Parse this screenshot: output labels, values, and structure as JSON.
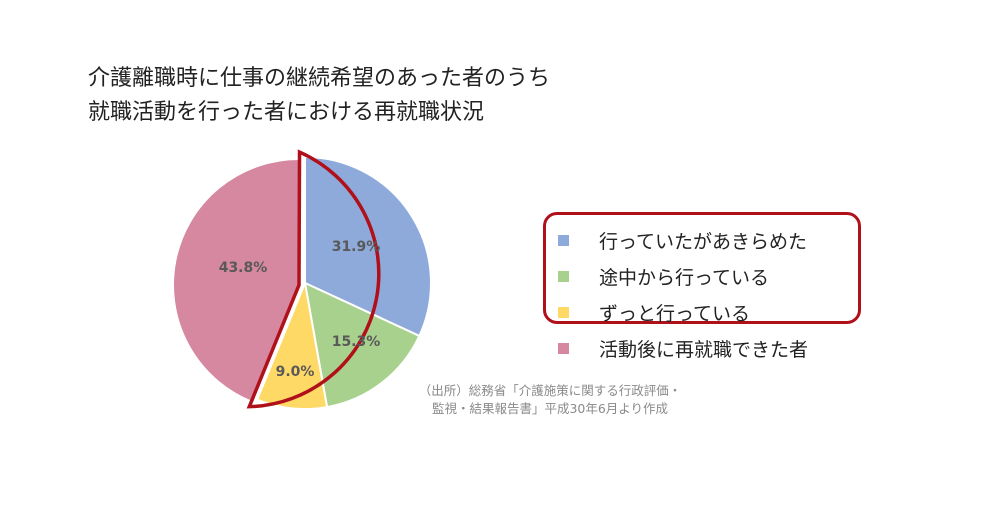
{
  "title": {
    "line1": "介護離職時に仕事の継続希望のあった者のうち",
    "line2": "就職活動を行った者における再就職状況"
  },
  "legend": {
    "items": [
      {
        "label": "行っていたがあきらめた",
        "color": "#8eaadb"
      },
      {
        "label": "途中から行っている",
        "color": "#a9d18e"
      },
      {
        "label": "ずっと行っている",
        "color": "#ffd966"
      },
      {
        "label": "活動後に再就職できた者",
        "color": "#d5889f"
      }
    ],
    "highlight_color": "#b0101a"
  },
  "source": {
    "line1": "（出所）総務省「介護施策に関する行政評価・",
    "line2": "監視・結果報告書」平成30年6月より作成"
  },
  "chart_data": {
    "type": "pie",
    "title": "介護離職時に仕事の継続希望のあった者のうち就職活動を行った者における再就職状況",
    "categories": [
      "行っていたがあきらめた",
      "途中から行っている",
      "ずっと行っている",
      "活動後に再就職できた者"
    ],
    "values": [
      31.9,
      15.3,
      9.0,
      43.8
    ],
    "labels": [
      "31.9%",
      "15.3%",
      "9.0%",
      "43.8%"
    ],
    "colors": [
      "#8eaadb",
      "#a9d18e",
      "#ffd966",
      "#d5889f"
    ],
    "start_angle": "12 o'clock, clockwise",
    "highlighted_group": [
      "行っていたがあきらめた",
      "途中から行っている",
      "ずっと行っている"
    ],
    "legend_position": "right"
  }
}
